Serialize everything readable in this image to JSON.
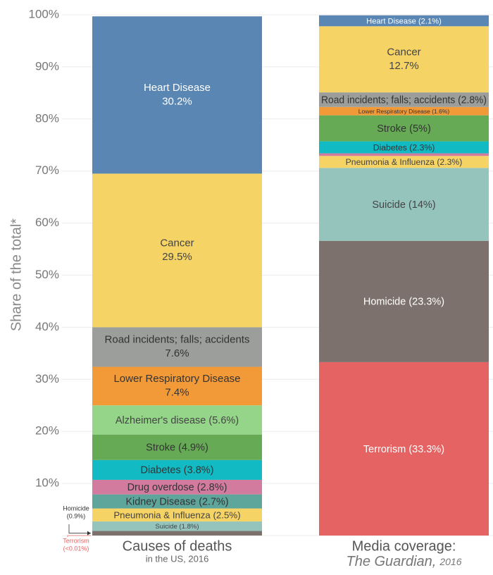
{
  "chart_data": {
    "type": "stacked_bar",
    "y_label": "Share of the total*",
    "ylim": [
      0,
      100
    ],
    "yticks": [
      {
        "value": 10,
        "label": "10%"
      },
      {
        "value": 20,
        "label": "20%"
      },
      {
        "value": 30,
        "label": "30%"
      },
      {
        "value": 40,
        "label": "40%"
      },
      {
        "value": 50,
        "label": "50%"
      },
      {
        "value": 60,
        "label": "60%"
      },
      {
        "value": 70,
        "label": "70%"
      },
      {
        "value": 80,
        "label": "80%"
      },
      {
        "value": 90,
        "label": "90%"
      },
      {
        "value": 100,
        "label": "100%"
      }
    ],
    "grid": true,
    "bars": [
      {
        "title": "Causes of deaths",
        "subtitle": [
          "in the US, 2016"
        ],
        "segments": [
          {
            "label": "Terrorism",
            "value_label": "(<0.01%)",
            "value": 0,
            "color": "#e56363",
            "text_color": "#e56363",
            "callout": true
          },
          {
            "label": "Homicide",
            "value_label": "(0.9%)",
            "value": 0.9,
            "color": "#7c716d",
            "text_color": "#333333",
            "callout": true
          },
          {
            "label": "Suicide (1.8%)",
            "value": 1.8,
            "color": "#95c4bd",
            "text_color": "#444444"
          },
          {
            "label": "Pneumonia & Influenza (2.5%)",
            "value": 2.5,
            "color": "#f5d365",
            "text_color": "#444444"
          },
          {
            "label": "Kidney Disease (2.7%)",
            "value": 2.7,
            "color": "#5ea59c",
            "text_color": "#333333"
          },
          {
            "label": "Drug overdose (2.8%)",
            "value": 2.8,
            "color": "#d37a9f",
            "text_color": "#333333"
          },
          {
            "label": "Diabetes (3.8%)",
            "value": 3.8,
            "color": "#12bac4",
            "text_color": "#333333"
          },
          {
            "label": "Stroke (4.9%)",
            "value": 4.9,
            "color": "#66aa55",
            "text_color": "#333333"
          },
          {
            "label": "Alzheimer's disease (5.6%)",
            "value": 5.6,
            "color": "#95d58a",
            "text_color": "#444444"
          },
          {
            "label": "Lower Respiratory Disease",
            "value_label": "7.4%",
            "value": 7.4,
            "color": "#f39a38",
            "text_color": "#333333"
          },
          {
            "label": "Road incidents; falls; accidents",
            "value_label": "7.6%",
            "value": 7.6,
            "color": "#9c9e9b",
            "text_color": "#333333"
          },
          {
            "label": "Cancer",
            "value_label": "29.5%",
            "value": 29.5,
            "color": "#f5d365",
            "text_color": "#444444"
          },
          {
            "label": "Heart Disease",
            "value_label": "30.2%",
            "value": 30.2,
            "color": "#5a86b3",
            "text_color": "#ffffff"
          }
        ]
      },
      {
        "title": "Media coverage:",
        "subtitle": [
          "The Guardian,",
          "2016"
        ],
        "segments": [
          {
            "label": "Terrorism (33.3%)",
            "value": 33.3,
            "color": "#e56363",
            "text_color": "#ffffff"
          },
          {
            "label": "Homicide (23.3%)",
            "value": 23.3,
            "color": "#7c716d",
            "text_color": "#ffffff"
          },
          {
            "label": "Suicide (14%)",
            "value": 14,
            "color": "#95c4bd",
            "text_color": "#444444"
          },
          {
            "label": "Pneumonia & Influenza (2.3%)",
            "value": 2.3,
            "color": "#f5d365",
            "text_color": "#444444"
          },
          {
            "label": null,
            "value": 0.5,
            "color": "#d37a9f",
            "text_color": "#333333"
          },
          {
            "label": "Diabetes (2.3%)",
            "value": 2.3,
            "color": "#12bac4",
            "text_color": "#333333"
          },
          {
            "label": "Stroke (5%)",
            "value": 5,
            "color": "#66aa55",
            "text_color": "#333333"
          },
          {
            "label": "Lower Respiratory Disease (1.6%)",
            "value": 1.6,
            "color": "#f39a38",
            "text_color": "#333333"
          },
          {
            "label": "Road incidents; falls; accidents (2.8%)",
            "value": 2.8,
            "color": "#9c9e9b",
            "text_color": "#333333"
          },
          {
            "label": "Cancer",
            "value_label": "12.7%",
            "value": 12.7,
            "color": "#f5d365",
            "text_color": "#444444"
          },
          {
            "label": "Heart Disease (2.1%)",
            "value": 2.1,
            "color": "#5a86b3",
            "text_color": "#ffffff"
          }
        ]
      }
    ]
  }
}
